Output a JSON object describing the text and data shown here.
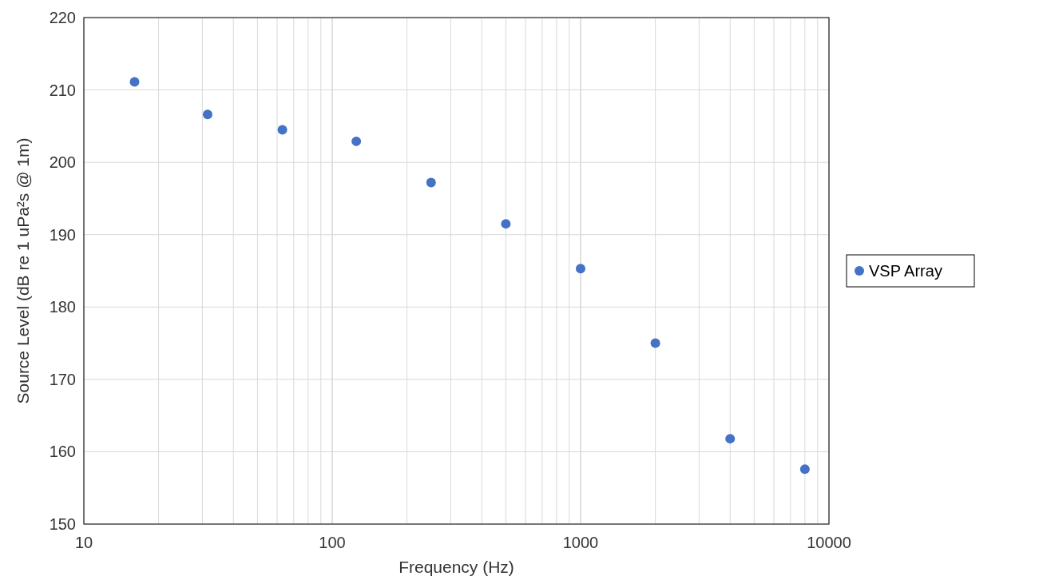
{
  "chart_data": {
    "type": "scatter",
    "xlabel": "Frequency  (Hz)",
    "ylabel": "Source Level  (dB re 1 uPa²s @ 1m)",
    "x": [
      16,
      31.5,
      63,
      125,
      250,
      500,
      1000,
      2000,
      4000,
      8000
    ],
    "series": [
      {
        "name": "VSP Array",
        "color": "#4472c4",
        "values": [
          211.1,
          206.6,
          204.5,
          202.9,
          197.2,
          191.5,
          185.3,
          175.0,
          161.8,
          157.6
        ]
      }
    ],
    "xlim": [
      10,
      10000
    ],
    "xticks": [
      10,
      100,
      1000,
      10000
    ],
    "ylim": [
      150,
      220
    ],
    "yticks": [
      150,
      160,
      170,
      180,
      190,
      200,
      210,
      220
    ],
    "log": "x",
    "grid": true,
    "legend": "right",
    "marker": "circle"
  }
}
